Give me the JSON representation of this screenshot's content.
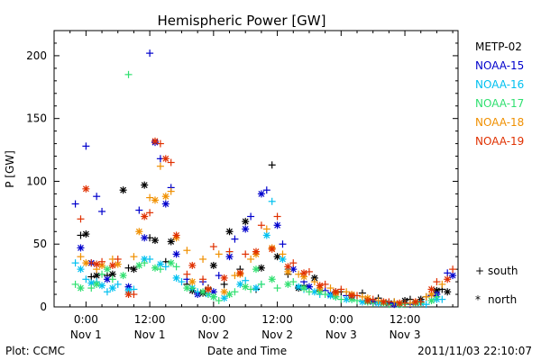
{
  "chart_data": {
    "type": "scatter",
    "title": "Hemispheric Power [GW]",
    "ylabel": "P [GW]",
    "xlabel": "Date and Time",
    "ylim": [
      0,
      220
    ],
    "xlim_hours": [
      -6,
      70
    ],
    "yticks": [
      0,
      50,
      100,
      150,
      200
    ],
    "xticks": [
      {
        "h": 0,
        "line1": "0:00",
        "line2": "Nov 1"
      },
      {
        "h": 12,
        "line1": "12:00",
        "line2": "Nov 1"
      },
      {
        "h": 24,
        "line1": "0:00",
        "line2": "Nov 2"
      },
      {
        "h": 36,
        "line1": "12:00",
        "line2": "Nov 2"
      },
      {
        "h": 48,
        "line1": "0:00",
        "line2": "Nov 3"
      },
      {
        "h": 60,
        "line1": "12:00",
        "line2": "Nov 3"
      }
    ],
    "footer_left": "Plot: CCMC",
    "footer_right": "2011/11/03 22:10:07",
    "symbol_legend": [
      {
        "symbol": "+",
        "label": "south"
      },
      {
        "symbol": "*",
        "label": "north"
      }
    ],
    "series": [
      {
        "name": "METP-02",
        "color": "#000000",
        "south": [
          [
            -1,
            57
          ],
          [
            1,
            24
          ],
          [
            4,
            25
          ],
          [
            8,
            31
          ],
          [
            12,
            55
          ],
          [
            15,
            36
          ],
          [
            19,
            18
          ],
          [
            23,
            15
          ],
          [
            26,
            18
          ],
          [
            29,
            30
          ],
          [
            32,
            14
          ],
          [
            35,
            113
          ],
          [
            38,
            26
          ],
          [
            41,
            17
          ],
          [
            44,
            13
          ],
          [
            48,
            12
          ],
          [
            52,
            11
          ],
          [
            55,
            7
          ],
          [
            58,
            4
          ],
          [
            61,
            6
          ],
          [
            64,
            8
          ],
          [
            67,
            14
          ]
        ],
        "north": [
          [
            0,
            58
          ],
          [
            2,
            25
          ],
          [
            5,
            26
          ],
          [
            7,
            93
          ],
          [
            9,
            30
          ],
          [
            11,
            97
          ],
          [
            13,
            53
          ],
          [
            16,
            52
          ],
          [
            20,
            13
          ],
          [
            22,
            11
          ],
          [
            24,
            33
          ],
          [
            27,
            60
          ],
          [
            30,
            68
          ],
          [
            33,
            31
          ],
          [
            36,
            40
          ],
          [
            40,
            15
          ],
          [
            43,
            23
          ],
          [
            47,
            12
          ],
          [
            50,
            9
          ],
          [
            53,
            5
          ],
          [
            57,
            3
          ],
          [
            60,
            5
          ],
          [
            63,
            6
          ],
          [
            66,
            13
          ],
          [
            68,
            12
          ]
        ]
      },
      {
        "name": "NOAA-15",
        "color": "#0000cc",
        "south": [
          [
            -2,
            82
          ],
          [
            0,
            128
          ],
          [
            2,
            88
          ],
          [
            3,
            76
          ],
          [
            10,
            77
          ],
          [
            12,
            202
          ],
          [
            14,
            118
          ],
          [
            16,
            95
          ],
          [
            19,
            22
          ],
          [
            22,
            20
          ],
          [
            25,
            25
          ],
          [
            28,
            54
          ],
          [
            31,
            72
          ],
          [
            34,
            93
          ],
          [
            37,
            50
          ],
          [
            41,
            20
          ],
          [
            45,
            13
          ],
          [
            49,
            9
          ],
          [
            53,
            5
          ],
          [
            57,
            3
          ],
          [
            61,
            2
          ],
          [
            65,
            9
          ],
          [
            68,
            27
          ]
        ],
        "north": [
          [
            -1,
            47
          ],
          [
            1,
            35
          ],
          [
            4,
            22
          ],
          [
            8,
            16
          ],
          [
            11,
            55
          ],
          [
            13,
            131
          ],
          [
            15,
            82
          ],
          [
            17,
            42
          ],
          [
            21,
            10
          ],
          [
            24,
            12
          ],
          [
            27,
            40
          ],
          [
            30,
            62
          ],
          [
            33,
            90
          ],
          [
            36,
            65
          ],
          [
            39,
            30
          ],
          [
            42,
            16
          ],
          [
            46,
            10
          ],
          [
            50,
            8
          ],
          [
            54,
            4
          ],
          [
            58,
            2
          ],
          [
            62,
            3
          ],
          [
            66,
            10
          ],
          [
            69,
            25
          ]
        ]
      },
      {
        "name": "NOAA-16",
        "color": "#00c0f0",
        "south": [
          [
            -2,
            35
          ],
          [
            0,
            22
          ],
          [
            2,
            20
          ],
          [
            4,
            12
          ],
          [
            6,
            18
          ],
          [
            9,
            14
          ],
          [
            12,
            38
          ],
          [
            15,
            32
          ],
          [
            18,
            20
          ],
          [
            21,
            12
          ],
          [
            24,
            8
          ],
          [
            27,
            44
          ],
          [
            30,
            21
          ],
          [
            33,
            18
          ],
          [
            35,
            84
          ],
          [
            38,
            30
          ],
          [
            41,
            14
          ],
          [
            44,
            10
          ],
          [
            47,
            8
          ],
          [
            50,
            6
          ],
          [
            53,
            4
          ],
          [
            56,
            3
          ],
          [
            60,
            3
          ],
          [
            64,
            2
          ],
          [
            67,
            6
          ]
        ],
        "north": [
          [
            -1,
            30
          ],
          [
            1,
            19
          ],
          [
            3,
            17
          ],
          [
            5,
            15
          ],
          [
            8,
            13
          ],
          [
            11,
            38
          ],
          [
            14,
            34
          ],
          [
            17,
            23
          ],
          [
            20,
            15
          ],
          [
            23,
            10
          ],
          [
            26,
            7
          ],
          [
            29,
            18
          ],
          [
            32,
            15
          ],
          [
            34,
            57
          ],
          [
            37,
            38
          ],
          [
            40,
            16
          ],
          [
            43,
            12
          ],
          [
            46,
            9
          ],
          [
            49,
            6
          ],
          [
            52,
            4
          ],
          [
            55,
            3
          ],
          [
            59,
            2
          ],
          [
            63,
            3
          ],
          [
            66,
            6
          ]
        ]
      },
      {
        "name": "NOAA-17",
        "color": "#30e070",
        "south": [
          [
            -2,
            18
          ],
          [
            1,
            15
          ],
          [
            3,
            26
          ],
          [
            5,
            22
          ],
          [
            8,
            185
          ],
          [
            11,
            35
          ],
          [
            14,
            30
          ],
          [
            17,
            32
          ],
          [
            20,
            15
          ],
          [
            23,
            10
          ],
          [
            25,
            5
          ],
          [
            28,
            12
          ],
          [
            31,
            14
          ],
          [
            33,
            18
          ],
          [
            36,
            15
          ],
          [
            39,
            20
          ],
          [
            42,
            12
          ],
          [
            45,
            10
          ],
          [
            48,
            6
          ],
          [
            51,
            5
          ],
          [
            54,
            3
          ],
          [
            57,
            2
          ],
          [
            60,
            2
          ],
          [
            63,
            3
          ],
          [
            66,
            8
          ]
        ],
        "north": [
          [
            -1,
            15
          ],
          [
            2,
            18
          ],
          [
            4,
            30
          ],
          [
            7,
            25
          ],
          [
            10,
            33
          ],
          [
            13,
            31
          ],
          [
            16,
            35
          ],
          [
            19,
            15
          ],
          [
            22,
            12
          ],
          [
            24,
            8
          ],
          [
            27,
            10
          ],
          [
            30,
            16
          ],
          [
            32,
            30
          ],
          [
            35,
            22
          ],
          [
            38,
            18
          ],
          [
            41,
            15
          ],
          [
            44,
            12
          ],
          [
            47,
            8
          ],
          [
            50,
            6
          ],
          [
            53,
            4
          ],
          [
            56,
            3
          ],
          [
            59,
            2
          ],
          [
            62,
            3
          ],
          [
            65,
            5
          ]
        ]
      },
      {
        "name": "NOAA-18",
        "color": "#f09000",
        "south": [
          [
            -1,
            40
          ],
          [
            2,
            30
          ],
          [
            5,
            38
          ],
          [
            9,
            40
          ],
          [
            12,
            87
          ],
          [
            14,
            112
          ],
          [
            16,
            92
          ],
          [
            19,
            45
          ],
          [
            22,
            38
          ],
          [
            25,
            42
          ],
          [
            28,
            25
          ],
          [
            31,
            38
          ],
          [
            34,
            62
          ],
          [
            37,
            42
          ],
          [
            40,
            26
          ],
          [
            43,
            20
          ],
          [
            46,
            15
          ],
          [
            49,
            12
          ],
          [
            52,
            8
          ],
          [
            55,
            5
          ],
          [
            58,
            4
          ],
          [
            61,
            3
          ],
          [
            64,
            8
          ],
          [
            67,
            18
          ]
        ],
        "north": [
          [
            0,
            35
          ],
          [
            3,
            33
          ],
          [
            6,
            34
          ],
          [
            10,
            60
          ],
          [
            13,
            85
          ],
          [
            15,
            88
          ],
          [
            17,
            55
          ],
          [
            20,
            20
          ],
          [
            23,
            14
          ],
          [
            26,
            12
          ],
          [
            29,
            26
          ],
          [
            32,
            42
          ],
          [
            35,
            47
          ],
          [
            38,
            28
          ],
          [
            41,
            24
          ],
          [
            44,
            15
          ],
          [
            47,
            11
          ],
          [
            50,
            10
          ],
          [
            53,
            7
          ],
          [
            56,
            4
          ],
          [
            59,
            3
          ],
          [
            62,
            4
          ],
          [
            65,
            10
          ]
        ]
      },
      {
        "name": "NOAA-19",
        "color": "#e03000",
        "south": [
          [
            -1,
            70
          ],
          [
            1,
            35
          ],
          [
            3,
            36
          ],
          [
            6,
            38
          ],
          [
            9,
            10
          ],
          [
            12,
            75
          ],
          [
            14,
            130
          ],
          [
            16,
            115
          ],
          [
            19,
            26
          ],
          [
            22,
            22
          ],
          [
            24,
            48
          ],
          [
            27,
            44
          ],
          [
            30,
            42
          ],
          [
            33,
            65
          ],
          [
            36,
            72
          ],
          [
            39,
            35
          ],
          [
            42,
            28
          ],
          [
            45,
            18
          ],
          [
            48,
            14
          ],
          [
            51,
            9
          ],
          [
            54,
            6
          ],
          [
            57,
            4
          ],
          [
            60,
            3
          ],
          [
            63,
            4
          ],
          [
            66,
            20
          ],
          [
            69,
            30
          ]
        ],
        "north": [
          [
            0,
            94
          ],
          [
            2,
            34
          ],
          [
            5,
            33
          ],
          [
            8,
            10
          ],
          [
            11,
            72
          ],
          [
            13,
            132
          ],
          [
            15,
            118
          ],
          [
            17,
            57
          ],
          [
            20,
            33
          ],
          [
            23,
            14
          ],
          [
            26,
            23
          ],
          [
            29,
            27
          ],
          [
            32,
            44
          ],
          [
            35,
            46
          ],
          [
            38,
            32
          ],
          [
            41,
            27
          ],
          [
            44,
            17
          ],
          [
            47,
            12
          ],
          [
            50,
            9
          ],
          [
            53,
            5
          ],
          [
            56,
            4
          ],
          [
            59,
            3
          ],
          [
            62,
            4
          ],
          [
            65,
            14
          ],
          [
            68,
            22
          ]
        ]
      }
    ]
  }
}
